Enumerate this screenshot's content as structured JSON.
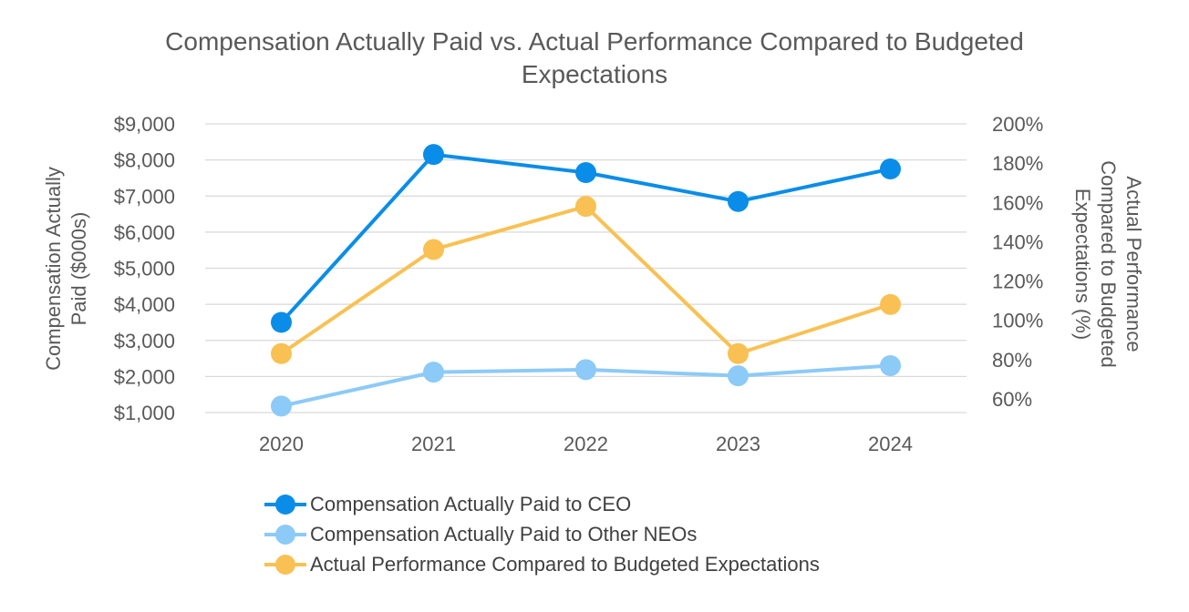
{
  "chart_data": {
    "type": "line",
    "title_lines": [
      "Compensation Actually Paid vs. Actual Performance Compared to Budgeted",
      "Expectations"
    ],
    "categories": [
      "2020",
      "2021",
      "2022",
      "2023",
      "2024"
    ],
    "y_left": {
      "label_lines": [
        "Compensation Actually",
        "Paid ($000s)"
      ],
      "ticks": [
        1000,
        2000,
        3000,
        4000,
        5000,
        6000,
        7000,
        8000,
        9000
      ],
      "tick_labels": [
        "$1,000",
        "$2,000",
        "$3,000",
        "$4,000",
        "$5,000",
        "$6,000",
        "$7,000",
        "$8,000",
        "$9,000"
      ],
      "ylim": [
        1000,
        9000
      ]
    },
    "y_right": {
      "label_lines": [
        "Actual Performance",
        "Compared to Budgeted",
        "Expectations (%)"
      ],
      "ticks": [
        60,
        80,
        100,
        120,
        140,
        160,
        180,
        200
      ],
      "tick_labels": [
        "60%",
        "80%",
        "100%",
        "120%",
        "140%",
        "160%",
        "180%",
        "200%"
      ],
      "ylim": [
        53,
        200
      ]
    },
    "grid": true,
    "legend_position": "bottom",
    "series": [
      {
        "name": "Compensation Actually Paid to CEO",
        "axis": "left",
        "color": "#0a8de8",
        "values": [
          3500,
          8150,
          7650,
          6850,
          7750
        ]
      },
      {
        "name": "Compensation Actually Paid to Other NEOs",
        "axis": "left",
        "color": "#8ccaf7",
        "values": [
          1180,
          2120,
          2190,
          2020,
          2300
        ]
      },
      {
        "name": "Actual Performance Compared to Budgeted Expectations",
        "axis": "right",
        "color": "#f9c153",
        "values": [
          83,
          136,
          158,
          83,
          108
        ]
      }
    ]
  }
}
